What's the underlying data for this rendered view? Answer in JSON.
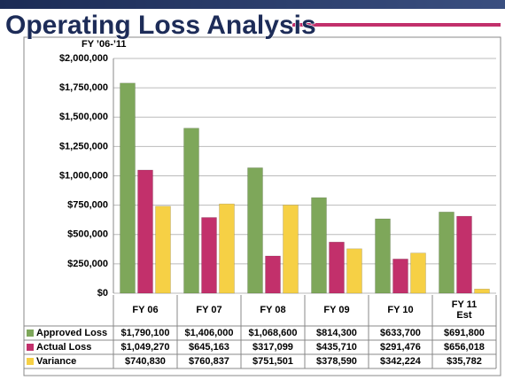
{
  "chart_data": {
    "type": "bar",
    "title": "Operating Loss Analysis",
    "subtitle": "FY ’06-’11",
    "categories": [
      "FY 06",
      "FY 07",
      "FY 08",
      "FY 09",
      "FY 10",
      "FY 11\nEst"
    ],
    "series": [
      {
        "name": "Approved Loss",
        "color": "#7ea75a",
        "values": [
          1790100,
          1406000,
          1068600,
          814300,
          633700,
          691800
        ],
        "value_labels": [
          "$1,790,100",
          "$1,406,000",
          "$1,068,600",
          "$814,300",
          "$633,700",
          "$691,800"
        ]
      },
      {
        "name": "Actual Loss",
        "color": "#c2306b",
        "values": [
          1049270,
          645163,
          317099,
          435710,
          291476,
          656018
        ],
        "value_labels": [
          "$1,049,270",
          "$645,163",
          "$317,099",
          "$435,710",
          "$291,476",
          "$656,018"
        ]
      },
      {
        "name": "Variance",
        "color": "#f6d045",
        "values": [
          740830,
          760837,
          751501,
          378590,
          342224,
          35782
        ],
        "value_labels": [
          "$740,830",
          "$760,837",
          "$751,501",
          "$378,590",
          "$342,224",
          "$35,782"
        ]
      }
    ],
    "ylim": [
      0,
      2000000
    ],
    "yticks": [
      {
        "value": 0,
        "label": "$0"
      },
      {
        "value": 250000,
        "label": "$250,000"
      },
      {
        "value": 500000,
        "label": "$500,000"
      },
      {
        "value": 750000,
        "label": "$750,000"
      },
      {
        "value": 1000000,
        "label": "$1,000,000"
      },
      {
        "value": 1250000,
        "label": "$1,250,000"
      },
      {
        "value": 1500000,
        "label": "$1,500,000"
      },
      {
        "value": 1750000,
        "label": "$1,750,000"
      },
      {
        "value": 2000000,
        "label": "$2,000,000"
      }
    ],
    "grid": true
  }
}
